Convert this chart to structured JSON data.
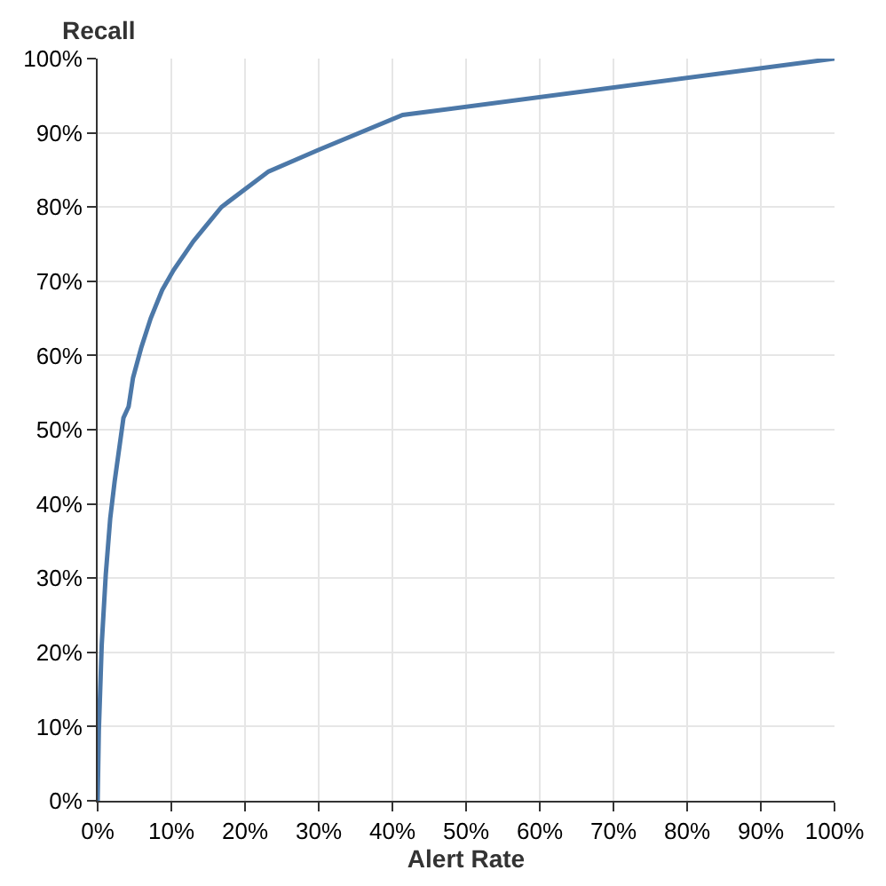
{
  "chart_data": {
    "type": "line",
    "xlabel": "Alert Rate",
    "ylabel": "Recall",
    "x": [
      0,
      0.16,
      0.55,
      1.1,
      1.7,
      2.3,
      2.9,
      3.5,
      4.2,
      4.8,
      5.9,
      7.2,
      8.75,
      10.3,
      13,
      16.8,
      23.2,
      30,
      41.4,
      100
    ],
    "series": [
      {
        "color": "#4c78a8",
        "values": [
          0,
          9.4,
          21,
          30.5,
          38,
          43,
          47.3,
          51.6,
          53.1,
          57,
          61,
          65,
          68.8,
          71.5,
          75.4,
          80,
          84.8,
          87.7,
          92.4,
          100
        ]
      }
    ],
    "xlim": [
      0,
      100
    ],
    "ylim": [
      0,
      100
    ],
    "xticks": [
      {
        "value": 0,
        "label": "0%"
      },
      {
        "value": 10,
        "label": "10%"
      },
      {
        "value": 20,
        "label": "20%"
      },
      {
        "value": 30,
        "label": "30%"
      },
      {
        "value": 40,
        "label": "40%"
      },
      {
        "value": 50,
        "label": "50%"
      },
      {
        "value": 60,
        "label": "60%"
      },
      {
        "value": 70,
        "label": "70%"
      },
      {
        "value": 80,
        "label": "80%"
      },
      {
        "value": 90,
        "label": "90%"
      },
      {
        "value": 100,
        "label": "100%"
      }
    ],
    "yticks": [
      {
        "value": 0,
        "label": "0%"
      },
      {
        "value": 10,
        "label": "10%"
      },
      {
        "value": 20,
        "label": "20%"
      },
      {
        "value": 30,
        "label": "30%"
      },
      {
        "value": 40,
        "label": "40%"
      },
      {
        "value": 50,
        "label": "50%"
      },
      {
        "value": 60,
        "label": "60%"
      },
      {
        "value": 70,
        "label": "70%"
      },
      {
        "value": 80,
        "label": "80%"
      },
      {
        "value": 90,
        "label": "90%"
      },
      {
        "value": 100,
        "label": "100%"
      }
    ],
    "grid": true
  }
}
